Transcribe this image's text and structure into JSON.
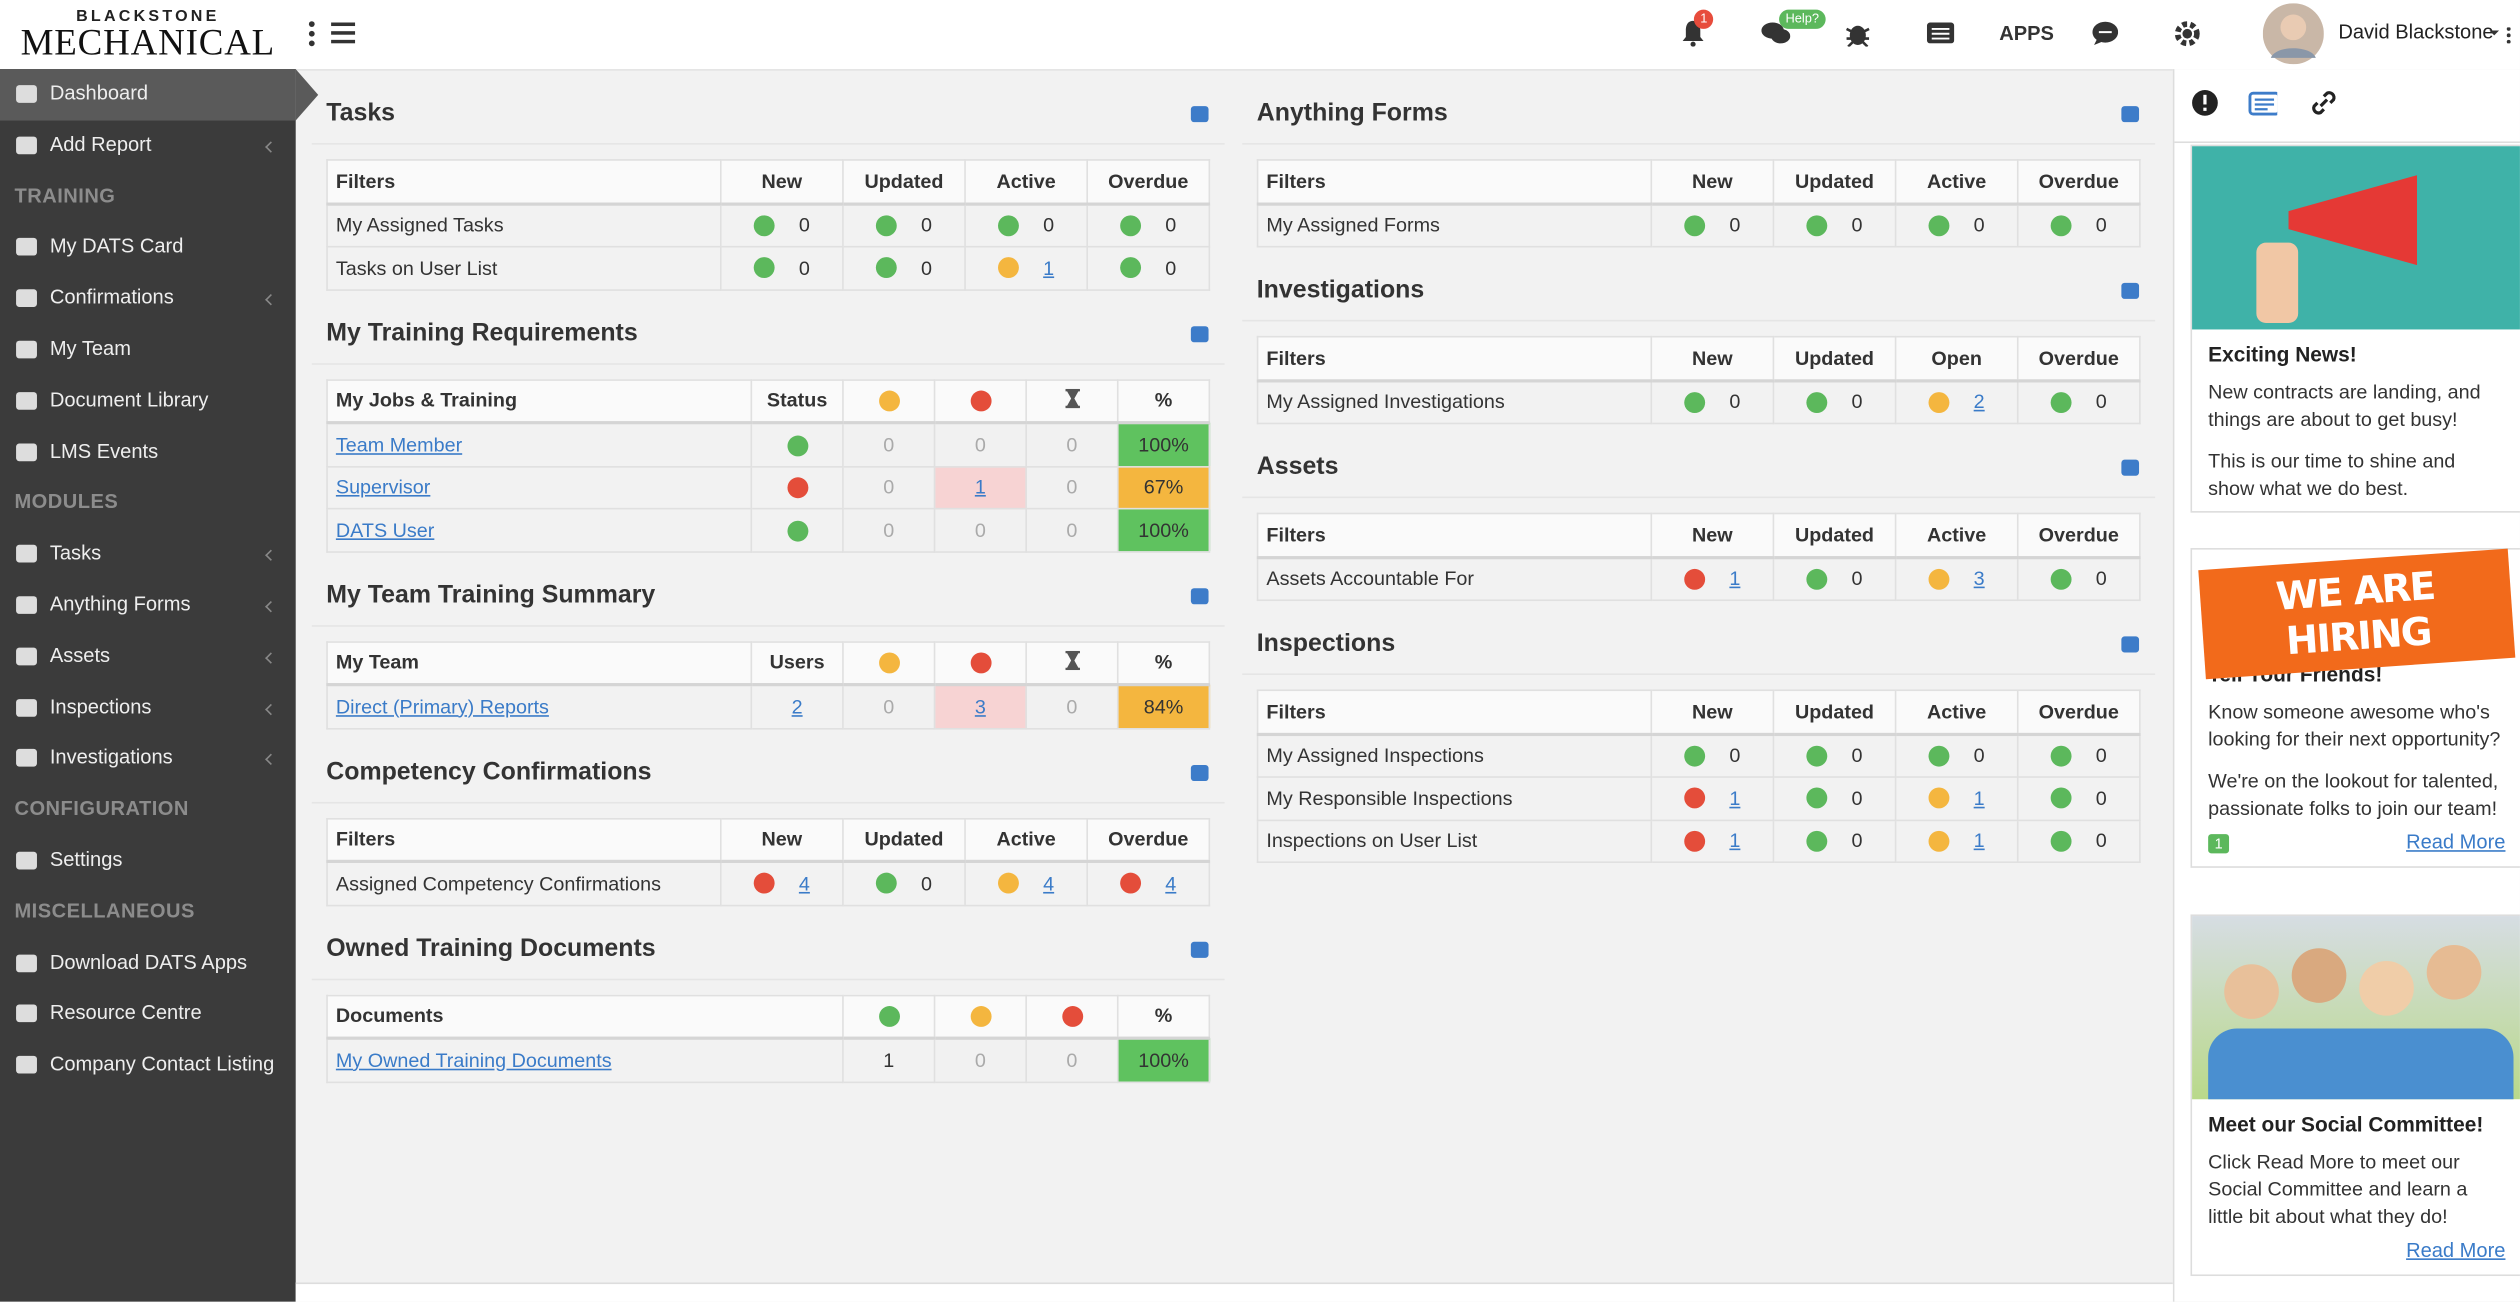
{
  "header": {
    "logo_top": "BLACKSTONE",
    "logo_main": "MECHANICAL",
    "notification_count": "1",
    "help_badge": "Help?",
    "apps": "APPS",
    "user_name": "David Blackstone"
  },
  "sidebar": [
    {
      "label": "Dashboard",
      "active": true
    },
    {
      "label": "Add Report",
      "expandable": true
    },
    {
      "heading": "TRAINING"
    },
    {
      "label": "My DATS Card"
    },
    {
      "label": "Confirmations",
      "expandable": true
    },
    {
      "label": "My Team"
    },
    {
      "label": "Document Library"
    },
    {
      "label": "LMS Events"
    },
    {
      "heading": "MODULES"
    },
    {
      "label": "Tasks",
      "expandable": true
    },
    {
      "label": "Anything Forms",
      "expandable": true
    },
    {
      "label": "Assets",
      "expandable": true
    },
    {
      "label": "Inspections",
      "expandable": true
    },
    {
      "label": "Investigations",
      "expandable": true
    },
    {
      "heading": "CONFIGURATION"
    },
    {
      "label": "Settings"
    },
    {
      "heading": "MISCELLANEOUS"
    },
    {
      "label": "Download DATS Apps"
    },
    {
      "label": "Resource Centre"
    },
    {
      "label": "Company Contact Listing"
    }
  ],
  "panels_left": [
    {
      "title": "Tasks",
      "columns": [
        "Filters",
        "New",
        "Updated",
        "Active",
        "Overdue"
      ],
      "rows": [
        [
          "My Assigned Tasks",
          {
            "dot": "green",
            "value": 0
          },
          {
            "dot": "green",
            "value": 0
          },
          {
            "dot": "green",
            "value": 0
          },
          {
            "dot": "green",
            "value": 0
          }
        ],
        [
          "Tasks on User List",
          {
            "dot": "green",
            "value": 0
          },
          {
            "dot": "green",
            "value": 0
          },
          {
            "dot": "yellow",
            "value": 1,
            "link": true
          },
          {
            "dot": "green",
            "value": 0
          }
        ]
      ]
    },
    {
      "title": "My Training Requirements",
      "icon": "card",
      "columns": [
        "My Jobs & Training",
        "Status",
        {
          "dot": "yellow"
        },
        {
          "dot": "red"
        },
        {
          "icon": "hourglass"
        },
        "%"
      ],
      "rows": [
        [
          {
            "text": "Team Member",
            "link": true
          },
          {
            "dot": "green"
          },
          {
            "value": 0,
            "muted": true
          },
          {
            "value": 0,
            "muted": true
          },
          {
            "value": 0,
            "muted": true
          },
          {
            "value": "100%",
            "fill": "green"
          }
        ],
        [
          {
            "text": "Supervisor",
            "link": true
          },
          {
            "dot": "red"
          },
          {
            "value": 0,
            "muted": true
          },
          {
            "value": 1,
            "link": true,
            "highlight": true
          },
          {
            "value": 0,
            "muted": true
          },
          {
            "value": "67%",
            "fill": "yellow"
          }
        ],
        [
          {
            "text": "DATS User",
            "link": true
          },
          {
            "dot": "green"
          },
          {
            "value": 0,
            "muted": true
          },
          {
            "value": 0,
            "muted": true
          },
          {
            "value": 0,
            "muted": true
          },
          {
            "value": "100%",
            "fill": "green"
          }
        ]
      ]
    },
    {
      "title": "My Team Training Summary",
      "icon": "users",
      "columns": [
        "My Team",
        "Users",
        {
          "dot": "yellow"
        },
        {
          "dot": "red"
        },
        {
          "icon": "hourglass"
        },
        "%"
      ],
      "rows": [
        [
          {
            "text": "Direct (Primary) Reports",
            "link": true
          },
          {
            "value": 2,
            "link": true
          },
          {
            "value": 0,
            "muted": true
          },
          {
            "value": 3,
            "link": true,
            "highlight": true
          },
          {
            "value": 0,
            "muted": true
          },
          {
            "value": "84%",
            "fill": "yellow"
          }
        ]
      ]
    },
    {
      "title": "Competency Confirmations",
      "columns": [
        "Filters",
        "New",
        "Updated",
        "Active",
        "Overdue"
      ],
      "rows": [
        [
          "Assigned Competency Confirmations",
          {
            "dot": "red",
            "value": 4,
            "link": true
          },
          {
            "dot": "green",
            "value": 0
          },
          {
            "dot": "yellow",
            "value": 4,
            "link": true
          },
          {
            "dot": "red",
            "value": 4,
            "link": true
          }
        ]
      ]
    },
    {
      "title": "Owned Training Documents",
      "columns": [
        "Documents",
        {
          "dot": "green"
        },
        {
          "dot": "yellow"
        },
        {
          "dot": "red"
        },
        "%"
      ],
      "rows": [
        [
          {
            "text": "My Owned Training Documents",
            "link": true
          },
          1,
          {
            "value": 0,
            "muted": true
          },
          {
            "value": 0,
            "muted": true
          },
          {
            "value": "100%",
            "fill": "green"
          }
        ]
      ]
    }
  ],
  "panels_middle": [
    {
      "title": "Anything Forms",
      "columns": [
        "Filters",
        "New",
        "Updated",
        "Active",
        "Overdue"
      ],
      "rows": [
        [
          "My Assigned Forms",
          {
            "dot": "green",
            "value": 0
          },
          {
            "dot": "green",
            "value": 0
          },
          {
            "dot": "green",
            "value": 0
          },
          {
            "dot": "green",
            "value": 0
          }
        ]
      ]
    },
    {
      "title": "Investigations",
      "columns": [
        "Filters",
        "New",
        "Updated",
        "Open",
        "Overdue"
      ],
      "rows": [
        [
          "My Assigned Investigations",
          {
            "dot": "green",
            "value": 0
          },
          {
            "dot": "green",
            "value": 0
          },
          {
            "dot": "yellow",
            "value": 2,
            "link": true
          },
          {
            "dot": "green",
            "value": 0
          }
        ]
      ]
    },
    {
      "title": "Assets",
      "columns": [
        "Filters",
        "New",
        "Updated",
        "Active",
        "Overdue"
      ],
      "rows": [
        [
          "Assets Accountable For",
          {
            "dot": "red",
            "value": 1,
            "link": true
          },
          {
            "dot": "green",
            "value": 0
          },
          {
            "dot": "yellow",
            "value": 3,
            "link": true
          },
          {
            "dot": "green",
            "value": 0
          }
        ]
      ]
    },
    {
      "title": "Inspections",
      "columns": [
        "Filters",
        "New",
        "Updated",
        "Active",
        "Overdue"
      ],
      "rows": [
        [
          "My Assigned Inspections",
          {
            "dot": "green",
            "value": 0
          },
          {
            "dot": "green",
            "value": 0
          },
          {
            "dot": "green",
            "value": 0
          },
          {
            "dot": "green",
            "value": 0
          }
        ],
        [
          "My Responsible Inspections",
          {
            "dot": "red",
            "value": 1,
            "link": true
          },
          {
            "dot": "green",
            "value": 0
          },
          {
            "dot": "yellow",
            "value": 1,
            "link": true
          },
          {
            "dot": "green",
            "value": 0
          }
        ],
        [
          "Inspections on User List",
          {
            "dot": "red",
            "value": 1,
            "link": true
          },
          {
            "dot": "green",
            "value": 0
          },
          {
            "dot": "yellow",
            "value": 1,
            "link": true
          },
          {
            "dot": "green",
            "value": 0
          }
        ]
      ]
    }
  ],
  "news_cards": [
    {
      "title": "Exciting News!",
      "paragraphs": [
        "New contracts are landing, and things are about to get busy!",
        "This is our time to shine and show what we do best."
      ]
    },
    {
      "image_text": "WE ARE HIRING",
      "title": "Tell Your Friends!",
      "paragraphs": [
        "Know someone awesome who's looking for their next opportunity?",
        "We're on the lookout for talented, passionate folks to join our team!"
      ],
      "likes": "1",
      "read_more": "Read More"
    },
    {
      "title": "Meet our Social Committee!",
      "paragraphs": [
        "Click Read More to meet our Social Committee and learn a little bit about what they do!"
      ],
      "read_more": "Read More"
    }
  ]
}
